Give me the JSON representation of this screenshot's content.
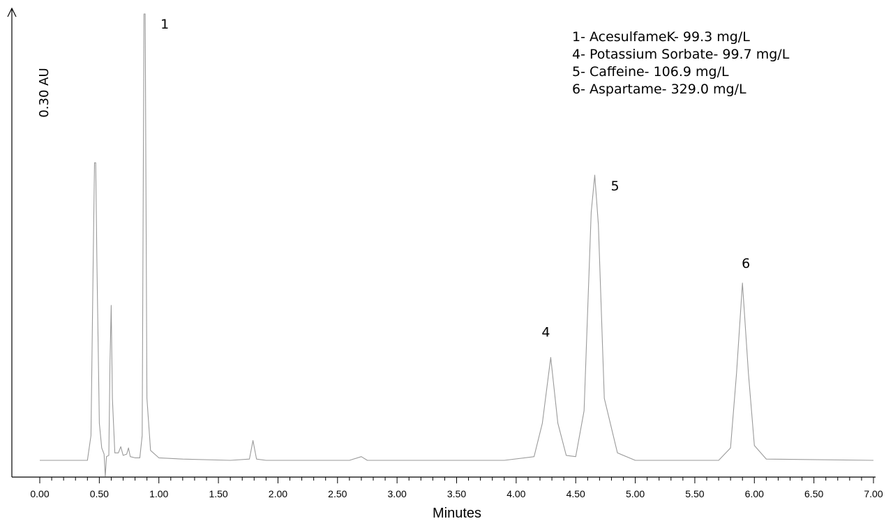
{
  "chart_data": {
    "type": "line",
    "xlabel": "Minutes",
    "ylabel": "0.30 AU",
    "xlim": [
      0,
      7
    ],
    "ylim": [
      -0.013,
      0.36
    ],
    "x_ticks": [
      "0.00",
      "0.50",
      "1.00",
      "1.50",
      "2.00",
      "2.50",
      "3.00",
      "3.50",
      "4.00",
      "4.50",
      "5.00",
      "5.50",
      "6.00",
      "6.50",
      "7.00"
    ],
    "grid": false,
    "legend_position": "top-right",
    "legend": [
      "1- AcesulfameK- 99.3 mg/L",
      "4- Potassium Sorbate- 99.7 mg/L",
      "5- Caffeine- 106.9 mg/L",
      "6- Aspartame- 329.0 mg/L"
    ],
    "peaks": [
      {
        "label": "1",
        "time": 0.88,
        "height": 0.36
      },
      {
        "label": "4",
        "time": 4.29,
        "height": 0.083
      },
      {
        "label": "5",
        "time": 4.66,
        "height": 0.23
      },
      {
        "label": "6",
        "time": 5.9,
        "height": 0.143
      }
    ],
    "series": [
      {
        "color": "#9a9a9a",
        "points": [
          [
            0.0,
            0.0
          ],
          [
            0.4,
            0.0
          ],
          [
            0.43,
            0.02
          ],
          [
            0.45,
            0.17
          ],
          [
            0.46,
            0.24
          ],
          [
            0.47,
            0.24
          ],
          [
            0.48,
            0.16
          ],
          [
            0.5,
            0.03
          ],
          [
            0.52,
            0.01
          ],
          [
            0.54,
            0.005
          ],
          [
            0.55,
            -0.013
          ],
          [
            0.56,
            0.003
          ],
          [
            0.58,
            0.004
          ],
          [
            0.59,
            0.08
          ],
          [
            0.6,
            0.125
          ],
          [
            0.61,
            0.05
          ],
          [
            0.63,
            0.006
          ],
          [
            0.66,
            0.006
          ],
          [
            0.68,
            0.011
          ],
          [
            0.7,
            0.004
          ],
          [
            0.73,
            0.005
          ],
          [
            0.745,
            0.01
          ],
          [
            0.76,
            0.003
          ],
          [
            0.8,
            0.002
          ],
          [
            0.84,
            0.002
          ],
          [
            0.86,
            0.02
          ],
          [
            0.875,
            0.36
          ],
          [
            0.885,
            0.36
          ],
          [
            0.9,
            0.05
          ],
          [
            0.93,
            0.008
          ],
          [
            1.0,
            0.002
          ],
          [
            1.2,
            0.001
          ],
          [
            1.6,
            0.0
          ],
          [
            1.76,
            0.001
          ],
          [
            1.79,
            0.016
          ],
          [
            1.82,
            0.001
          ],
          [
            1.9,
            0.0
          ],
          [
            2.6,
            0.0
          ],
          [
            2.7,
            0.003
          ],
          [
            2.75,
            0.0
          ],
          [
            3.9,
            0.0
          ],
          [
            4.15,
            0.003
          ],
          [
            4.22,
            0.03
          ],
          [
            4.29,
            0.083
          ],
          [
            4.35,
            0.03
          ],
          [
            4.42,
            0.004
          ],
          [
            4.5,
            0.003
          ],
          [
            4.57,
            0.04
          ],
          [
            4.63,
            0.2
          ],
          [
            4.66,
            0.23
          ],
          [
            4.69,
            0.19
          ],
          [
            4.74,
            0.05
          ],
          [
            4.85,
            0.006
          ],
          [
            5.0,
            0.0
          ],
          [
            5.7,
            0.0
          ],
          [
            5.8,
            0.01
          ],
          [
            5.85,
            0.07
          ],
          [
            5.9,
            0.143
          ],
          [
            5.95,
            0.07
          ],
          [
            6.0,
            0.012
          ],
          [
            6.1,
            0.001
          ],
          [
            7.0,
            0.0
          ]
        ]
      }
    ]
  }
}
